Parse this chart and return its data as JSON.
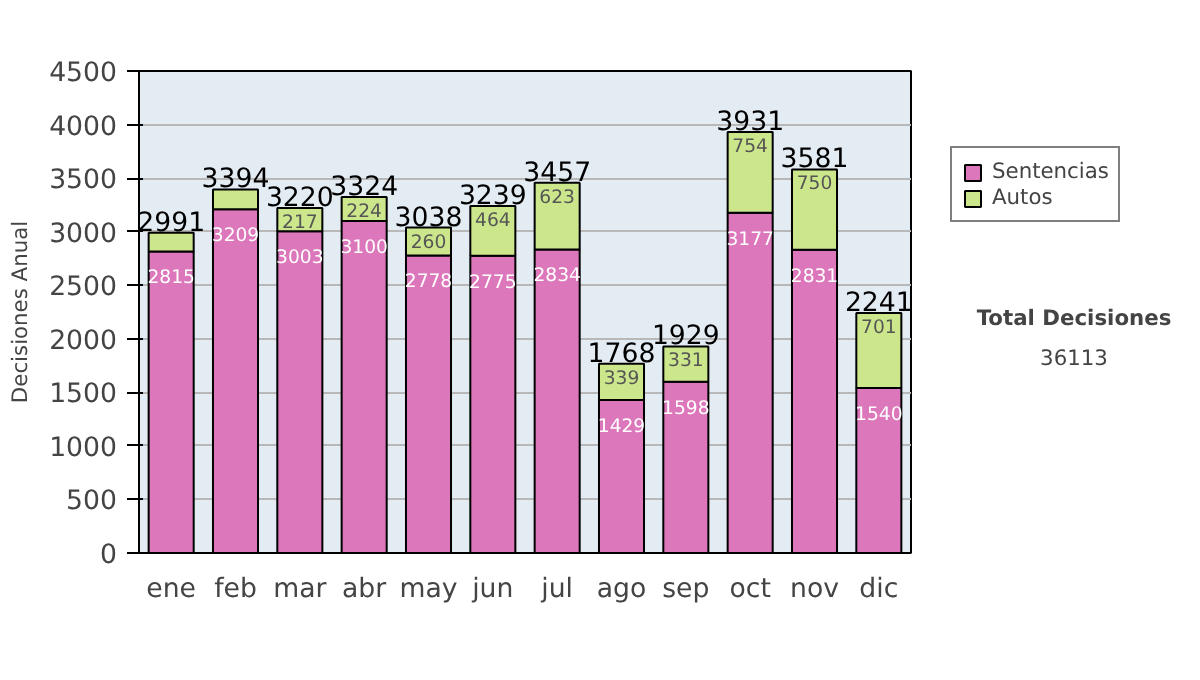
{
  "chart_data": {
    "type": "bar",
    "stacked": true,
    "ylabel": "Decisiones Anual",
    "categories": [
      "ene",
      "feb",
      "mar",
      "abr",
      "may",
      "jun",
      "jul",
      "ago",
      "sep",
      "oct",
      "nov",
      "dic"
    ],
    "series": [
      {
        "name": "Sentencias",
        "color": "#dd77bb",
        "values": [
          2815,
          3209,
          3003,
          3100,
          2778,
          2775,
          2834,
          1429,
          1598,
          3177,
          2831,
          1540
        ],
        "value_labels": [
          "2815",
          "3209",
          "3003",
          "3100",
          "2778",
          "2775",
          "2834",
          "1429",
          "1598",
          "3177",
          "2831",
          "1540"
        ]
      },
      {
        "name": "Autos",
        "color": "#cce68c",
        "values": [
          176,
          185,
          217,
          224,
          260,
          464,
          623,
          339,
          331,
          754,
          750,
          701
        ],
        "value_labels": [
          null,
          null,
          "217",
          "224",
          "260",
          "464",
          "623",
          "339",
          "331",
          "754",
          "750",
          "701"
        ]
      }
    ],
    "totals": [
      "2991",
      "3394",
      "3220",
      "3324",
      "3038",
      "3239",
      "3457",
      "1768",
      "1929",
      "3931",
      "3581",
      "2241"
    ],
    "ylim": [
      0,
      4500
    ],
    "yticks": [
      0,
      500,
      1000,
      1500,
      2000,
      2500,
      3000,
      3500,
      4000,
      4500
    ],
    "grid": "y",
    "legend": "right",
    "annotations": [
      "Total Decisiones",
      "36113"
    ]
  }
}
